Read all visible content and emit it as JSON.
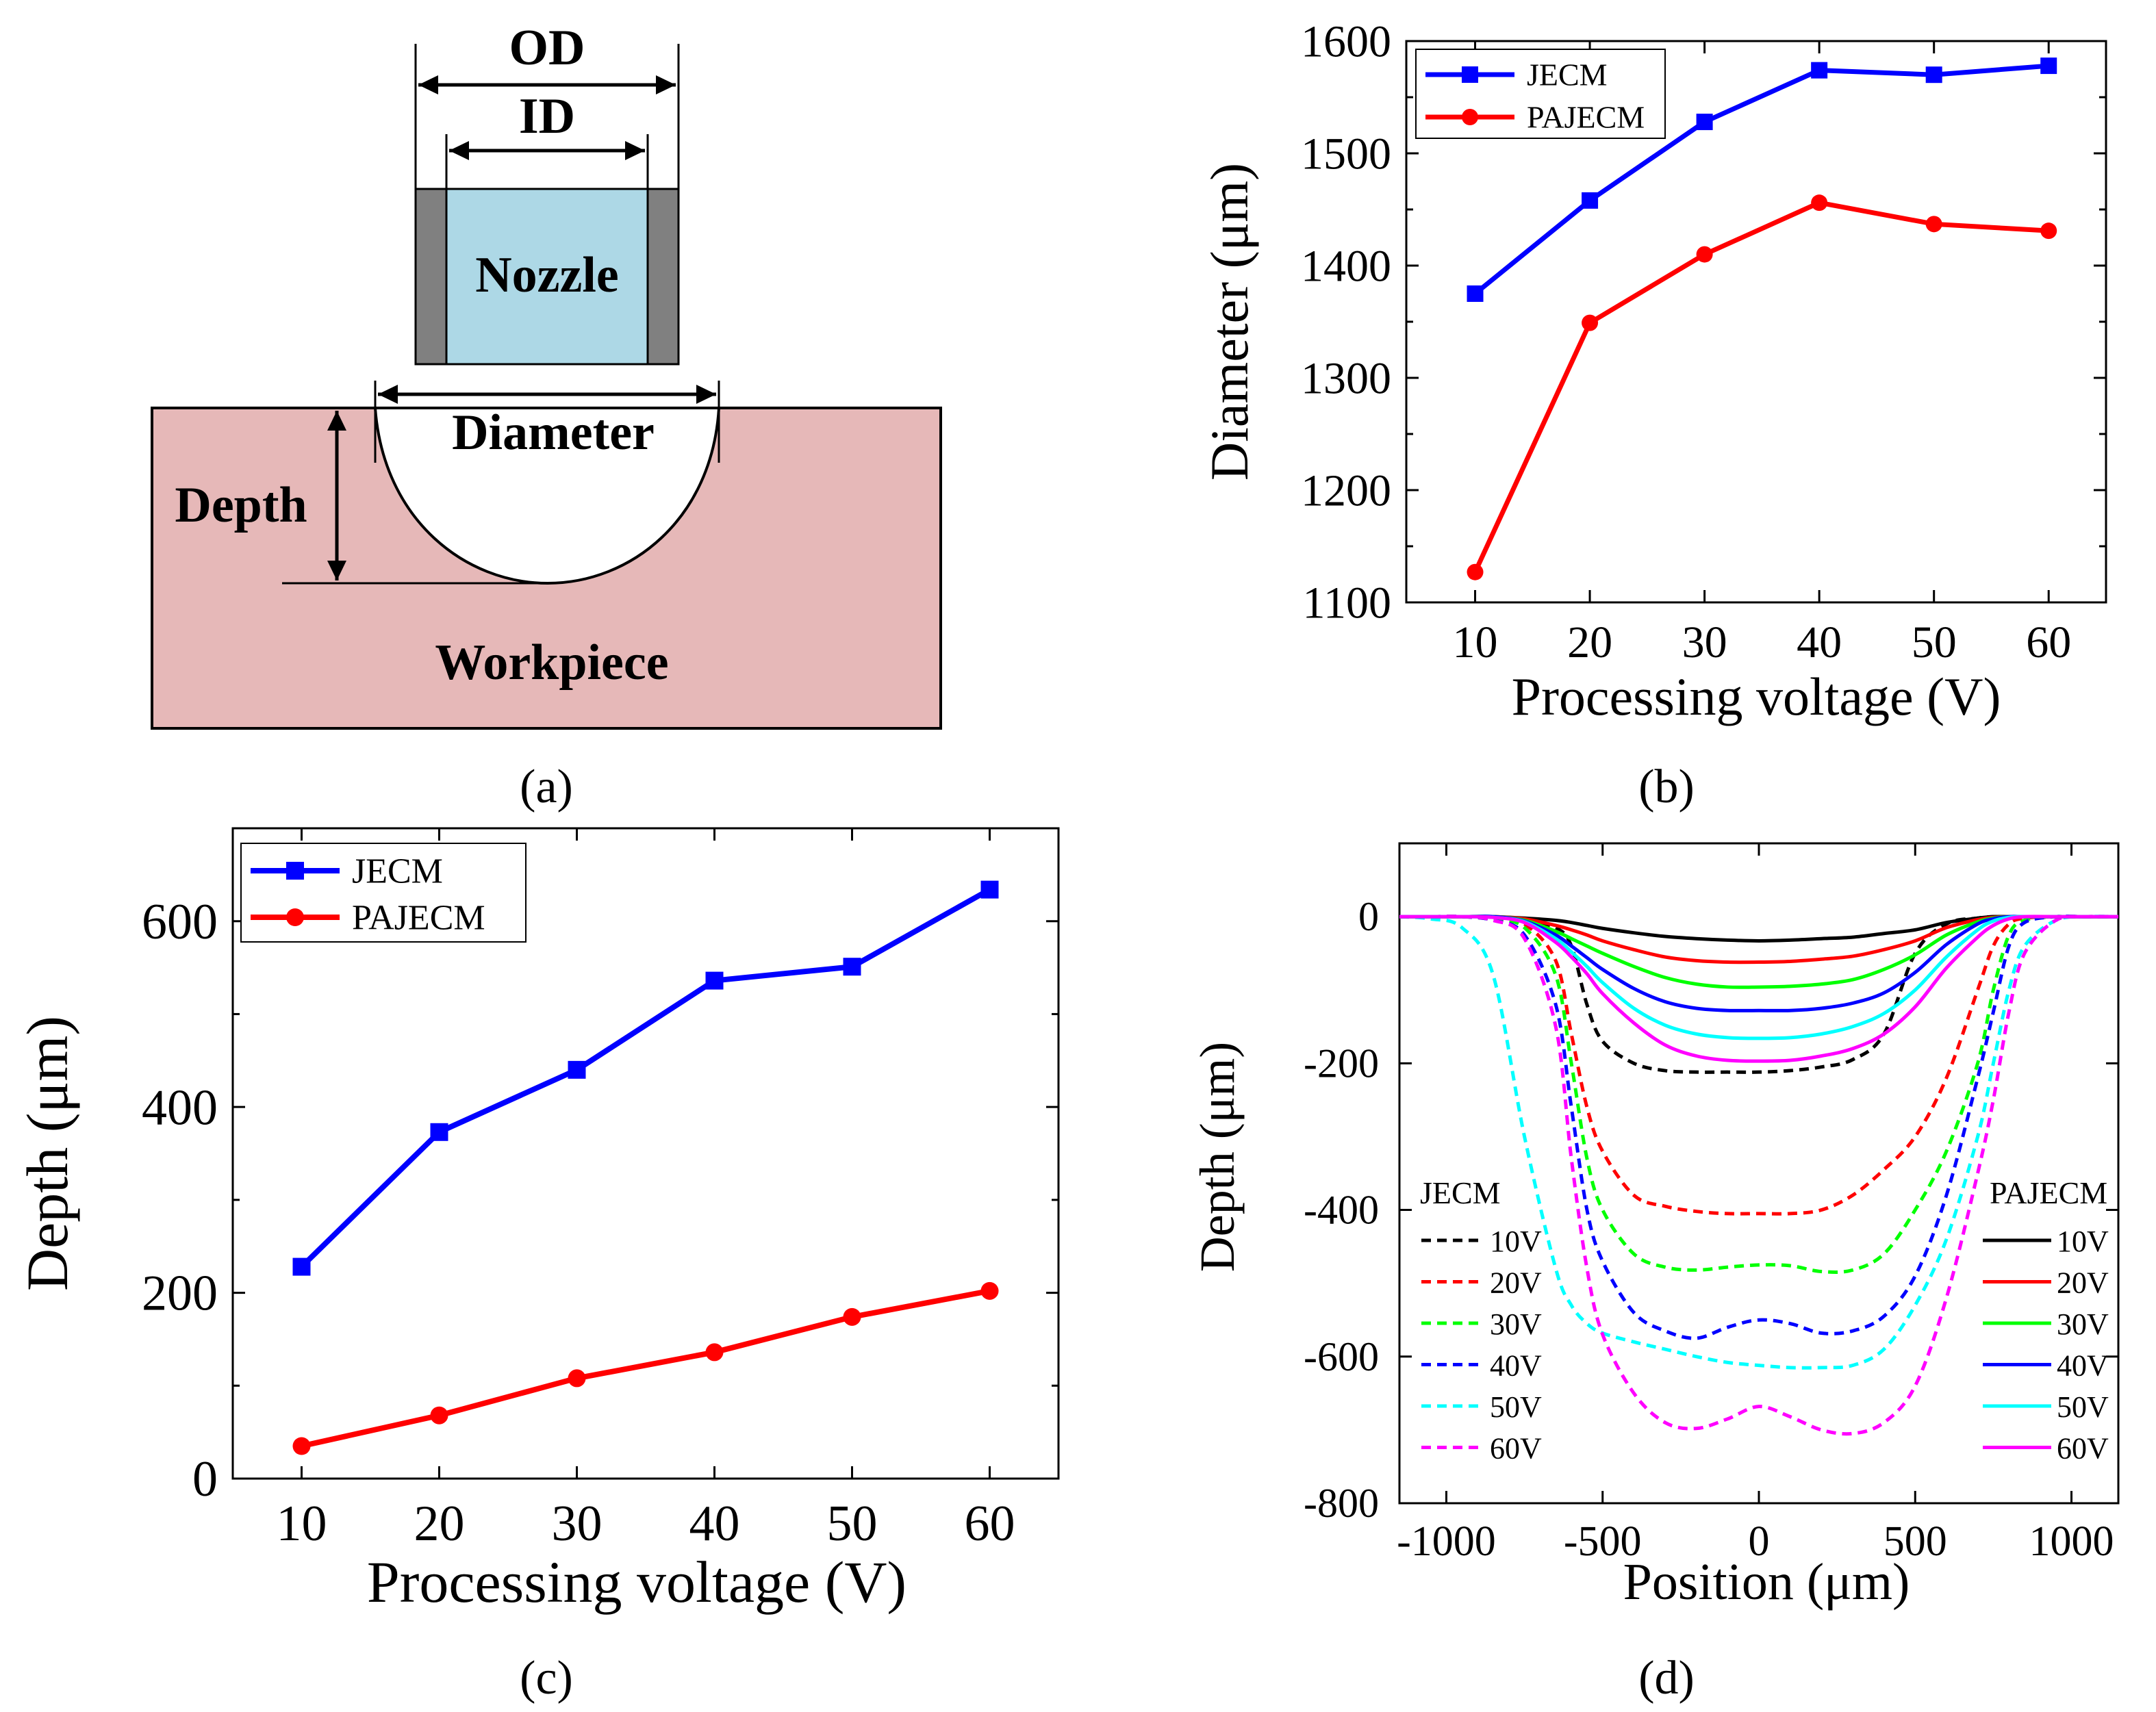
{
  "panel_labels": {
    "a": "(a)",
    "b": "(b)",
    "c": "(c)",
    "d": "(d)"
  },
  "schematic": {
    "od_label": "OD",
    "id_label": "ID",
    "nozzle_label": "Nozzle",
    "diameter_label": "Diameter",
    "depth_label": "Depth",
    "workpiece_label": "Workpiece",
    "colors": {
      "nozzle_fill": "#add8e6",
      "nozzle_wall": "#808080",
      "workpiece_fill": "#e6b8b8"
    }
  },
  "chart_data": [
    {
      "id": "b",
      "type": "line",
      "title": "",
      "xlabel": "Processing voltage (V)",
      "ylabel": "Diameter (μm)",
      "x": [
        10,
        20,
        30,
        40,
        50,
        60
      ],
      "xticks": [
        "10",
        "20",
        "30",
        "40",
        "50",
        "60"
      ],
      "yticks": [
        "1100",
        "1200",
        "1300",
        "1400",
        "1500",
        "1600"
      ],
      "xlim": [
        4,
        65
      ],
      "ylim": [
        1100,
        1600
      ],
      "legend_position": "top-left",
      "series": [
        {
          "name": "JECM",
          "color": "#0000ff",
          "marker": "square",
          "values": [
            1375,
            1458,
            1528,
            1574,
            1570,
            1578
          ]
        },
        {
          "name": "PAJECM",
          "color": "#ff0000",
          "marker": "circle",
          "values": [
            1127,
            1349,
            1410,
            1456,
            1437,
            1431
          ]
        }
      ]
    },
    {
      "id": "c",
      "type": "line",
      "title": "",
      "xlabel": "Processing voltage (V)",
      "ylabel": "Depth (μm)",
      "x": [
        10,
        20,
        30,
        40,
        50,
        60
      ],
      "xticks": [
        "10",
        "20",
        "30",
        "40",
        "50",
        "60"
      ],
      "yticks": [
        "0",
        "200",
        "400",
        "600"
      ],
      "xlim": [
        5,
        65
      ],
      "ylim": [
        0,
        700
      ],
      "legend_position": "top-left",
      "series": [
        {
          "name": "JECM",
          "color": "#0000ff",
          "marker": "square",
          "values": [
            228,
            373,
            440,
            536,
            551,
            634
          ]
        },
        {
          "name": "PAJECM",
          "color": "#ff0000",
          "marker": "circle",
          "values": [
            35,
            68,
            108,
            136,
            174,
            202
          ]
        }
      ]
    },
    {
      "id": "d",
      "type": "line",
      "title": "",
      "xlabel": "Position (μm)",
      "ylabel": "Depth (μm)",
      "xticks": [
        "-1000",
        "-500",
        "0",
        "500",
        "1000"
      ],
      "xtick_values": [
        -1000,
        -500,
        0,
        500,
        1000
      ],
      "yticks": [
        "0",
        "-200",
        "-400",
        "-600",
        "-800"
      ],
      "ytick_values": [
        0,
        -200,
        -400,
        -600,
        -800
      ],
      "xlim": [
        -1150,
        1150
      ],
      "ylim": [
        -800,
        100
      ],
      "legend_left_title": "JECM",
      "legend_right_title": "PAJECM",
      "x": [
        -1150,
        -1050,
        -950,
        -850,
        -750,
        -650,
        -600,
        -550,
        -500,
        -400,
        -300,
        -200,
        -100,
        0,
        100,
        200,
        300,
        400,
        500,
        600,
        700,
        750,
        800,
        850,
        950,
        1050,
        1150
      ],
      "series": [
        {
          "name": "10V",
          "group": "JECM",
          "color": "#000000",
          "dash": true,
          "values": [
            0,
            0,
            0,
            -2,
            -5,
            -15,
            -40,
            -120,
            -170,
            -200,
            -210,
            -212,
            -212,
            -212,
            -210,
            -205,
            -195,
            -160,
            -50,
            -10,
            -2,
            0,
            0,
            0,
            0,
            0,
            0
          ]
        },
        {
          "name": "20V",
          "group": "JECM",
          "color": "#ff0000",
          "dash": true,
          "values": [
            0,
            0,
            0,
            -3,
            -10,
            -60,
            -160,
            -260,
            -320,
            -380,
            -395,
            -402,
            -405,
            -405,
            -405,
            -400,
            -380,
            -345,
            -300,
            -220,
            -100,
            -40,
            -10,
            -2,
            0,
            0,
            0
          ]
        },
        {
          "name": "30V",
          "group": "JECM",
          "color": "#00ff00",
          "dash": true,
          "values": [
            0,
            0,
            0,
            -4,
            -15,
            -80,
            -200,
            -330,
            -400,
            -460,
            -478,
            -482,
            -478,
            -475,
            -476,
            -484,
            -482,
            -460,
            -400,
            -320,
            -200,
            -100,
            -25,
            -5,
            0,
            0,
            0
          ]
        },
        {
          "name": "40V",
          "group": "JECM",
          "color": "#0000ff",
          "dash": true,
          "values": [
            0,
            0,
            0,
            -5,
            -25,
            -120,
            -260,
            -400,
            -470,
            -540,
            -565,
            -575,
            -560,
            -550,
            -555,
            -568,
            -565,
            -545,
            -490,
            -380,
            -220,
            -130,
            -40,
            -8,
            0,
            0,
            0
          ]
        },
        {
          "name": "50V",
          "group": "JECM",
          "color": "#00ffff",
          "dash": true,
          "values": [
            0,
            -3,
            -15,
            -80,
            -300,
            -480,
            -530,
            -555,
            -568,
            -580,
            -590,
            -600,
            -608,
            -612,
            -615,
            -615,
            -612,
            -590,
            -530,
            -440,
            -300,
            -200,
            -100,
            -40,
            -5,
            0,
            0
          ]
        },
        {
          "name": "60V",
          "group": "JECM",
          "color": "#ff00ff",
          "dash": true,
          "values": [
            0,
            0,
            0,
            -5,
            -30,
            -150,
            -330,
            -480,
            -570,
            -650,
            -690,
            -698,
            -685,
            -668,
            -682,
            -700,
            -705,
            -690,
            -640,
            -520,
            -350,
            -250,
            -130,
            -50,
            -5,
            0,
            0
          ]
        },
        {
          "name": "10V",
          "group": "PAJECM",
          "color": "#000000",
          "dash": false,
          "values": [
            0,
            0,
            0,
            0,
            -2,
            -5,
            -8,
            -12,
            -16,
            -22,
            -27,
            -30,
            -32,
            -33,
            -32,
            -30,
            -28,
            -23,
            -18,
            -8,
            -2,
            0,
            0,
            0,
            0,
            0,
            0
          ]
        },
        {
          "name": "20V",
          "group": "PAJECM",
          "color": "#ff0000",
          "dash": false,
          "values": [
            0,
            0,
            0,
            0,
            -3,
            -12,
            -18,
            -25,
            -33,
            -45,
            -55,
            -60,
            -62,
            -62,
            -61,
            -58,
            -54,
            -45,
            -33,
            -15,
            -4,
            -1,
            0,
            0,
            0,
            0,
            0
          ]
        },
        {
          "name": "30V",
          "group": "PAJECM",
          "color": "#00ff00",
          "dash": false,
          "values": [
            0,
            0,
            0,
            0,
            -5,
            -20,
            -30,
            -40,
            -50,
            -68,
            -83,
            -92,
            -96,
            -96,
            -95,
            -92,
            -86,
            -72,
            -52,
            -25,
            -7,
            -2,
            0,
            0,
            0,
            0,
            0
          ]
        },
        {
          "name": "40V",
          "group": "PAJECM",
          "color": "#0000ff",
          "dash": false,
          "values": [
            0,
            0,
            0,
            0,
            -6,
            -25,
            -40,
            -56,
            -72,
            -98,
            -116,
            -125,
            -128,
            -128,
            -128,
            -125,
            -118,
            -104,
            -76,
            -38,
            -10,
            -3,
            0,
            0,
            0,
            0,
            0
          ]
        },
        {
          "name": "50V",
          "group": "PAJECM",
          "color": "#00ffff",
          "dash": false,
          "values": [
            0,
            0,
            0,
            -1,
            -7,
            -30,
            -48,
            -68,
            -90,
            -125,
            -148,
            -160,
            -165,
            -166,
            -165,
            -160,
            -150,
            -132,
            -100,
            -55,
            -18,
            -6,
            -1,
            0,
            0,
            0,
            0
          ]
        },
        {
          "name": "60V",
          "group": "PAJECM",
          "color": "#ff00ff",
          "dash": false,
          "values": [
            0,
            0,
            0,
            -1,
            -8,
            -35,
            -55,
            -78,
            -105,
            -145,
            -175,
            -190,
            -196,
            -197,
            -196,
            -190,
            -180,
            -160,
            -123,
            -70,
            -28,
            -12,
            -3,
            0,
            0,
            0,
            0
          ]
        }
      ]
    }
  ]
}
